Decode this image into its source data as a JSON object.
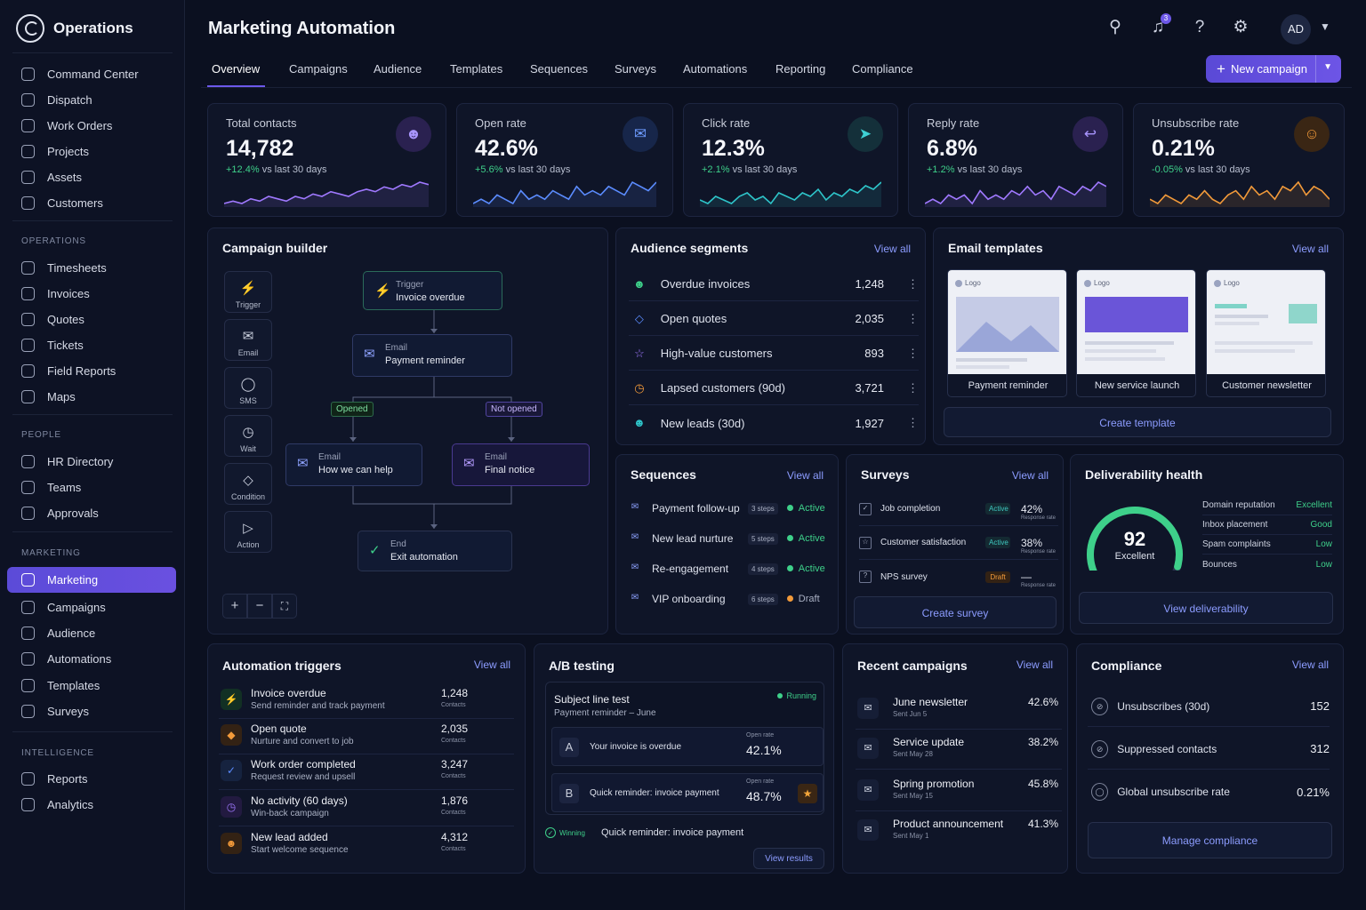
{
  "brand": {
    "name": "Operations"
  },
  "sidebar": {
    "top": [
      {
        "label": "Command Center"
      },
      {
        "label": "Dispatch"
      },
      {
        "label": "Work Orders"
      },
      {
        "label": "Projects"
      },
      {
        "label": "Assets"
      },
      {
        "label": "Customers"
      }
    ],
    "sections": [
      {
        "title": "OPERATIONS",
        "items": [
          {
            "label": "Timesheets"
          },
          {
            "label": "Invoices"
          },
          {
            "label": "Quotes"
          },
          {
            "label": "Tickets"
          },
          {
            "label": "Field Reports"
          },
          {
            "label": "Maps"
          }
        ]
      },
      {
        "title": "PEOPLE",
        "items": [
          {
            "label": "HR Directory"
          },
          {
            "label": "Teams"
          },
          {
            "label": "Approvals"
          }
        ]
      },
      {
        "title": "MARKETING",
        "items": [
          {
            "label": "Marketing"
          },
          {
            "label": "Campaigns"
          },
          {
            "label": "Audience"
          },
          {
            "label": "Automations"
          },
          {
            "label": "Templates"
          },
          {
            "label": "Surveys"
          }
        ]
      },
      {
        "title": "INTELLIGENCE",
        "items": [
          {
            "label": "Reports"
          },
          {
            "label": "Analytics"
          }
        ]
      }
    ]
  },
  "header": {
    "title": "Marketing Automation",
    "notifications": "3",
    "avatar": "AD"
  },
  "tabs": [
    {
      "label": "Overview"
    },
    {
      "label": "Campaigns"
    },
    {
      "label": "Audience"
    },
    {
      "label": "Templates"
    },
    {
      "label": "Sequences"
    },
    {
      "label": "Surveys"
    },
    {
      "label": "Automations"
    },
    {
      "label": "Reporting"
    },
    {
      "label": "Compliance"
    }
  ],
  "new_campaign": "New campaign",
  "kpis": [
    {
      "label": "Total contacts",
      "value": "14,782",
      "delta": "+12.4%",
      "suffix": "vs last 30 days",
      "color": "#a079ff",
      "trend": [
        3,
        4,
        3,
        5,
        4,
        6,
        5,
        4,
        6,
        5,
        7,
        6,
        8,
        7,
        6,
        8,
        9,
        8,
        10,
        9,
        11,
        10,
        12,
        11
      ]
    },
    {
      "label": "Open rate",
      "value": "42.6%",
      "delta": "+5.6%",
      "suffix": "vs last 30 days",
      "color": "#5b8cff",
      "trend": [
        4,
        5,
        4,
        6,
        5,
        4,
        7,
        5,
        6,
        5,
        7,
        6,
        5,
        8,
        6,
        7,
        6,
        8,
        7,
        6,
        9,
        8,
        7,
        9
      ]
    },
    {
      "label": "Click rate",
      "value": "12.3%",
      "delta": "+2.1%",
      "suffix": "vs last 30 days",
      "color": "#2ec4c9",
      "trend": [
        5,
        4,
        6,
        5,
        4,
        6,
        7,
        5,
        6,
        4,
        7,
        6,
        5,
        7,
        6,
        8,
        5,
        7,
        6,
        8,
        7,
        9,
        8,
        10
      ]
    },
    {
      "label": "Reply rate",
      "value": "6.8%",
      "delta": "+1.2%",
      "suffix": "vs last 30 days",
      "color": "#a079ff",
      "trend": [
        4,
        5,
        4,
        6,
        5,
        6,
        4,
        7,
        5,
        6,
        5,
        7,
        6,
        8,
        6,
        7,
        5,
        8,
        7,
        6,
        8,
        7,
        9,
        8
      ]
    },
    {
      "label": "Unsubscribe rate",
      "value": "0.21%",
      "delta": "-0.05%",
      "suffix": "vs last 30 days",
      "color": "#f29a3a",
      "trend": [
        6,
        5,
        7,
        6,
        5,
        7,
        6,
        8,
        6,
        5,
        7,
        8,
        6,
        9,
        7,
        8,
        6,
        9,
        8,
        10,
        7,
        9,
        8,
        6
      ]
    }
  ],
  "builder": {
    "title": "Campaign builder",
    "tools": [
      {
        "label": "Trigger"
      },
      {
        "label": "Email"
      },
      {
        "label": "SMS"
      },
      {
        "label": "Wait"
      },
      {
        "label": "Condition"
      },
      {
        "label": "Action"
      }
    ],
    "nodes": {
      "trigger": {
        "sub": "Trigger",
        "main": "Invoice overdue"
      },
      "email1": {
        "sub": "Email",
        "main": "Payment reminder"
      },
      "email2": {
        "sub": "Email",
        "main": "How we can help"
      },
      "email3": {
        "sub": "Email",
        "main": "Final notice"
      },
      "end": {
        "sub": "End",
        "main": "Exit automation"
      }
    },
    "branch_yes": "Opened",
    "branch_no": "Not opened"
  },
  "segments": {
    "title": "Audience segments",
    "view_all": "View all",
    "rows": [
      {
        "name": "Overdue invoices",
        "count": "1,248",
        "color": "#3ed08a"
      },
      {
        "name": "Open quotes",
        "count": "2,035",
        "color": "#5b8cff"
      },
      {
        "name": "High-value customers",
        "count": "893",
        "color": "#a079ff"
      },
      {
        "name": "Lapsed customers (90d)",
        "count": "3,721",
        "color": "#f29a3a"
      },
      {
        "name": "New leads (30d)",
        "count": "1,927",
        "color": "#2ec4c9"
      }
    ]
  },
  "templates": {
    "title": "Email templates",
    "view_all": "View all",
    "logo": "Logo",
    "items": [
      {
        "name": "Payment reminder"
      },
      {
        "name": "New service launch"
      },
      {
        "name": "Customer newsletter"
      }
    ],
    "create": "Create template"
  },
  "sequences": {
    "title": "Sequences",
    "view_all": "View all",
    "rows": [
      {
        "name": "Payment follow-up",
        "steps": "3 steps",
        "status": "Active"
      },
      {
        "name": "New lead nurture",
        "steps": "5 steps",
        "status": "Active"
      },
      {
        "name": "Re-engagement",
        "steps": "4 steps",
        "status": "Active"
      },
      {
        "name": "VIP onboarding",
        "steps": "6 steps",
        "status": "Draft"
      }
    ]
  },
  "surveys": {
    "title": "Surveys",
    "view_all": "View all",
    "rate_label": "Response rate",
    "rows": [
      {
        "name": "Job completion",
        "status": "Active",
        "rate": "42%"
      },
      {
        "name": "Customer satisfaction",
        "status": "Active",
        "rate": "38%"
      },
      {
        "name": "NPS survey",
        "status": "Draft",
        "rate": "—"
      }
    ],
    "create": "Create survey"
  },
  "deliverability": {
    "title": "Deliverability health",
    "score": "92",
    "score_value": 92,
    "grade": "Excellent",
    "rows": [
      {
        "label": "Domain reputation",
        "value": "Excellent"
      },
      {
        "label": "Inbox placement",
        "value": "Good"
      },
      {
        "label": "Spam complaints",
        "value": "Low"
      },
      {
        "label": "Bounces",
        "value": "Low"
      }
    ],
    "button": "View deliverability"
  },
  "triggers": {
    "title": "Automation triggers",
    "view_all": "View all",
    "count_label": "Contacts",
    "rows": [
      {
        "name": "Invoice overdue",
        "desc": "Send reminder and track payment",
        "count": "1,248",
        "color": "#3ed08a"
      },
      {
        "name": "Open quote",
        "desc": "Nurture and convert to job",
        "count": "2,035",
        "color": "#f29a3a"
      },
      {
        "name": "Work order completed",
        "desc": "Request review and upsell",
        "count": "3,247",
        "color": "#5b8cff"
      },
      {
        "name": "No activity (60 days)",
        "desc": "Win-back campaign",
        "count": "1,876",
        "color": "#a079ff"
      },
      {
        "name": "New lead added",
        "desc": "Start welcome sequence",
        "count": "4,312",
        "color": "#f29a3a"
      }
    ]
  },
  "ab": {
    "title": "A/B testing",
    "test_name": "Subject line test",
    "test_sub": "Payment reminder – June",
    "status": "Running",
    "metric_label": "Open rate",
    "variants": [
      {
        "letter": "A",
        "text": "Your invoice is overdue",
        "rate": "42.1%"
      },
      {
        "letter": "B",
        "text": "Quick reminder: invoice payment",
        "rate": "48.7%"
      }
    ],
    "winner_label": "Winning",
    "winner_text": "Quick reminder: invoice payment",
    "results_button": "View results"
  },
  "recent": {
    "title": "Recent campaigns",
    "view_all": "View all",
    "rows": [
      {
        "name": "June newsletter",
        "date": "Sent Jun 5",
        "rate": "42.6%"
      },
      {
        "name": "Service update",
        "date": "Sent May 28",
        "rate": "38.2%"
      },
      {
        "name": "Spring promotion",
        "date": "Sent May 15",
        "rate": "45.8%"
      },
      {
        "name": "Product announcement",
        "date": "Sent May 1",
        "rate": "41.3%"
      }
    ]
  },
  "compliance": {
    "title": "Compliance",
    "view_all": "View all",
    "rows": [
      {
        "label": "Unsubscribes (30d)",
        "value": "152"
      },
      {
        "label": "Suppressed contacts",
        "value": "312"
      },
      {
        "label": "Global unsubscribe rate",
        "value": "0.21%"
      }
    ],
    "button": "Manage compliance"
  }
}
